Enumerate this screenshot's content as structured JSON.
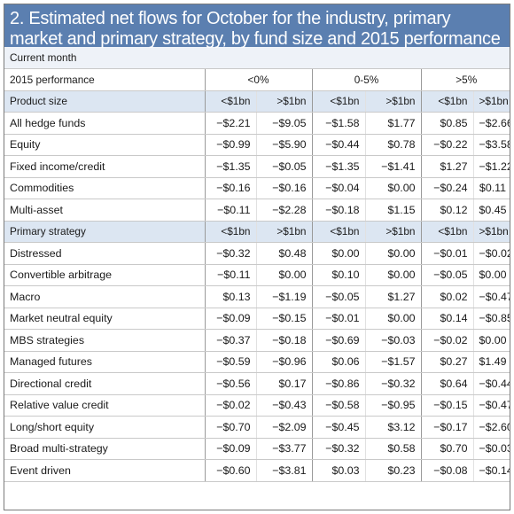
{
  "title": "2. Estimated net flows for October for the industry, primary market and primary strategy, by fund size and 2015 performance",
  "current_label": "Current month",
  "performance_label": "2015 performance",
  "performance_groups": [
    "<0%",
    "0-5%",
    ">5%"
  ],
  "section1": {
    "header": "Product size",
    "cols": [
      "<$1bn",
      ">$1bn",
      "<$1bn",
      ">$1bn",
      "<$1bn",
      ">$1bn"
    ],
    "rows": [
      {
        "label": "All hedge funds",
        "values": [
          "−$2.21",
          "−$9.05",
          "−$1.58",
          "$1.77",
          "$0.85",
          "−$2.66"
        ]
      },
      {
        "label": "Equity",
        "values": [
          "−$0.99",
          "−$5.90",
          "−$0.44",
          "$0.78",
          "−$0.22",
          "−$3.58"
        ]
      },
      {
        "label": "Fixed income/credit",
        "values": [
          "−$1.35",
          "−$0.05",
          "−$1.35",
          "−$1.41",
          "$1.27",
          "−$1.22"
        ]
      },
      {
        "label": "Commodities",
        "values": [
          "−$0.16",
          "−$0.16",
          "−$0.04",
          "$0.00",
          "−$0.24",
          "$0.11"
        ]
      },
      {
        "label": "Multi-asset",
        "values": [
          "−$0.11",
          "−$2.28",
          "−$0.18",
          "$1.15",
          "$0.12",
          "$0.45"
        ]
      }
    ]
  },
  "section2": {
    "header": "Primary strategy",
    "cols": [
      "<$1bn",
      ">$1bn",
      "<$1bn",
      ">$1bn",
      "<$1bn",
      ">$1bn"
    ],
    "rows": [
      {
        "label": "Distressed",
        "values": [
          "−$0.32",
          "$0.48",
          "$0.00",
          "$0.00",
          "−$0.01",
          "−$0.02"
        ]
      },
      {
        "label": "Convertible arbitrage",
        "values": [
          "−$0.11",
          "$0.00",
          "$0.10",
          "$0.00",
          "−$0.05",
          "$0.00"
        ]
      },
      {
        "label": "Macro",
        "values": [
          "$0.13",
          "−$1.19",
          "−$0.05",
          "$1.27",
          "$0.02",
          "−$0.47"
        ]
      },
      {
        "label": "Market neutral equity",
        "values": [
          "−$0.09",
          "−$0.15",
          "−$0.01",
          "$0.00",
          "$0.14",
          "−$0.85"
        ]
      },
      {
        "label": "MBS strategies",
        "values": [
          "−$0.37",
          "−$0.18",
          "−$0.69",
          "−$0.03",
          "−$0.02",
          "$0.00"
        ]
      },
      {
        "label": "Managed futures",
        "values": [
          "−$0.59",
          "−$0.96",
          "$0.06",
          "−$1.57",
          "$0.27",
          "$1.49"
        ]
      },
      {
        "label": "Directional credit",
        "values": [
          "−$0.56",
          "$0.17",
          "−$0.86",
          "−$0.32",
          "$0.64",
          "−$0.44"
        ]
      },
      {
        "label": "Relative value credit",
        "values": [
          "−$0.02",
          "−$0.43",
          "−$0.58",
          "−$0.95",
          "−$0.15",
          "−$0.47"
        ]
      },
      {
        "label": "Long/short equity",
        "values": [
          "−$0.70",
          "−$2.09",
          "−$0.45",
          "$3.12",
          "−$0.17",
          "−$2.60"
        ]
      },
      {
        "label": "Broad multi-strategy",
        "values": [
          "−$0.09",
          "−$3.77",
          "−$0.32",
          "$0.58",
          "$0.70",
          "−$0.03"
        ]
      },
      {
        "label": "Event driven",
        "values": [
          "−$0.60",
          "−$3.81",
          "$0.03",
          "$0.23",
          "−$0.08",
          "−$0.14"
        ]
      }
    ]
  },
  "colors": {
    "title_bg": "#5b7fb0",
    "header_bg": "#dce6f2"
  }
}
